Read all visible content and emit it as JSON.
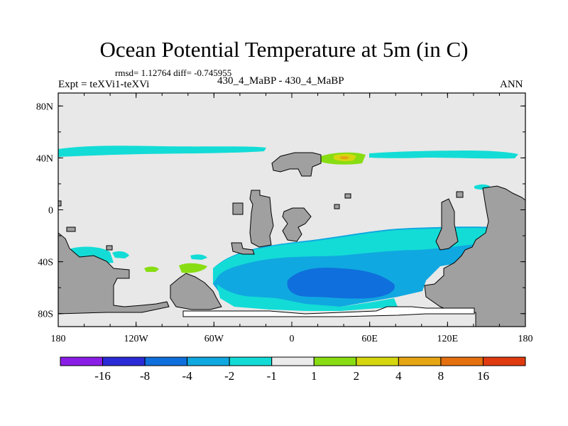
{
  "chart_data": {
    "type": "heatmap",
    "title": "Ocean Potential Temperature at 5m (in C)",
    "stats_text": "rmsd= 1.12764 diff= -0.745955",
    "left_label": "Expt = teXVi1-teXVi",
    "center_label": "430_4_MaBP - 430_4_MaBP",
    "right_label": "ANN",
    "x_ticks": [
      "180",
      "120W",
      "60W",
      "0",
      "60E",
      "120E",
      "180"
    ],
    "x_tick_values": [
      -180,
      -120,
      -60,
      0,
      60,
      120,
      180
    ],
    "y_ticks": [
      "80N",
      "40N",
      "0",
      "40S",
      "80S"
    ],
    "y_tick_values": [
      80,
      40,
      0,
      -40,
      -80
    ],
    "xlim": [
      -180,
      180
    ],
    "ylim": [
      -90,
      90
    ],
    "colorbar": {
      "labels": [
        "-16",
        "-8",
        "-4",
        "-2",
        "-1",
        "1",
        "2",
        "4",
        "8",
        "16"
      ],
      "colors": [
        "#8a1ee6",
        "#2a2ad6",
        "#0f6fdc",
        "#10a8e0",
        "#13dcd6",
        "#ebebeb",
        "#88dd12",
        "#d6d60f",
        "#e6a513",
        "#e5700f",
        "#e03a10"
      ]
    },
    "field_colors": {
      "neutral": "#e8e8e8",
      "land": "#a0a0a0",
      "cyan": "#13dcd6",
      "light_blue": "#10a8e0",
      "blue": "#0f6fdc",
      "green": "#88dd12",
      "yellow": "#d6d60f",
      "orange": "#e6a513"
    },
    "regions": [
      {
        "name": "north-atlantic-cool-band",
        "level": "-2 to -1",
        "color_key": "cyan"
      },
      {
        "name": "north-pacific-cool-band",
        "level": "-2 to -1",
        "color_key": "cyan"
      },
      {
        "name": "southern-ocean-cool-region",
        "level": "-8 to -1",
        "color_key": "light_blue"
      },
      {
        "name": "southern-ocean-cold-core",
        "level": "-8 to -4",
        "color_key": "blue"
      },
      {
        "name": "north-warm-patch",
        "level": "1 to 4",
        "color_key": "green"
      },
      {
        "name": "south-pacific-warm-patches",
        "level": "1 to 2",
        "color_key": "green"
      }
    ]
  }
}
